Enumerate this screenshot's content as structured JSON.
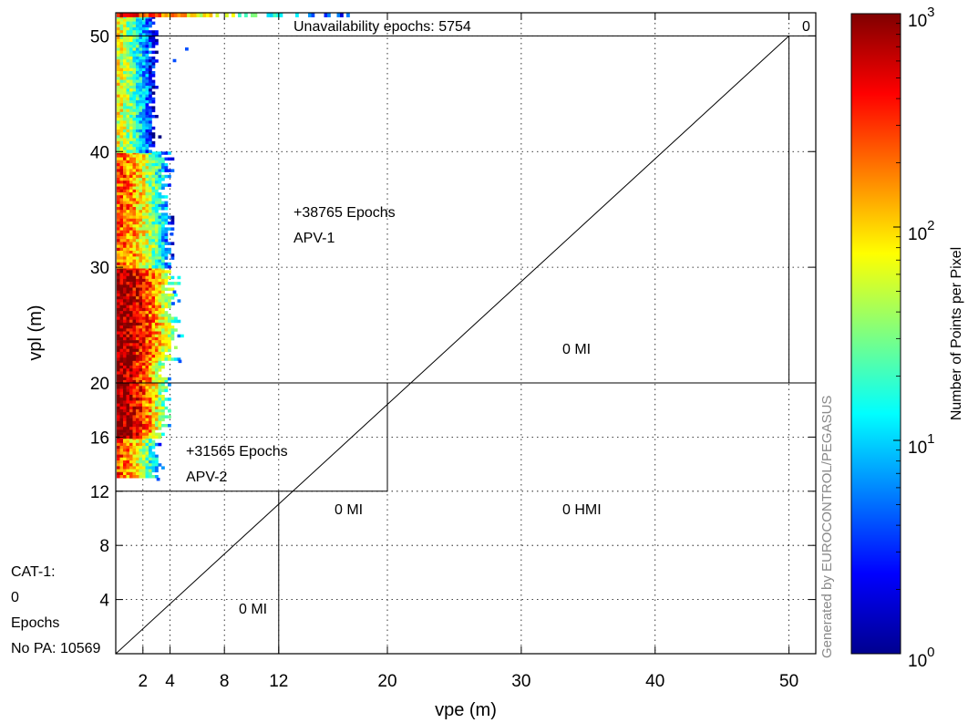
{
  "chart_data": {
    "type": "heatmap",
    "title": "",
    "xlabel": "vpe (m)",
    "ylabel": "vpl (m)",
    "xlim": [
      0,
      52
    ],
    "ylim": [
      0,
      52
    ],
    "scale": "piecewise-linear (compressed above 20 m)",
    "x_ticks": [
      "2",
      "4",
      "8",
      "12",
      "20",
      "30",
      "40",
      "50"
    ],
    "y_ticks": [
      "4",
      "8",
      "12",
      "16",
      "20",
      "30",
      "40",
      "50"
    ],
    "grid": true,
    "diagonal": "vpe = vpl",
    "regions": [
      {
        "name": "unavailability",
        "text": "Unavailability epochs: 5754"
      },
      {
        "name": "hmi-top-corner",
        "text": "0"
      },
      {
        "name": "apv1",
        "lines": [
          "+38765 Epochs",
          "APV-1"
        ]
      },
      {
        "name": "apv1-mi",
        "text": "0 MI"
      },
      {
        "name": "apv2",
        "lines": [
          "+31565 Epochs",
          "APV-2"
        ]
      },
      {
        "name": "apv2-mi",
        "text": "0 MI"
      },
      {
        "name": "hmi",
        "text": "0 HMI"
      },
      {
        "name": "cat1-mi",
        "text": "0 MI"
      },
      {
        "name": "cat1",
        "lines": [
          "CAT-1:",
          "0",
          "Epochs"
        ]
      },
      {
        "name": "no-pa",
        "text": "No PA: 10569"
      }
    ],
    "colorbar": {
      "label": "Number of Points per Pixel",
      "scale": "log",
      "range": [
        1,
        1000
      ],
      "ticks": [
        {
          "base": "10",
          "exp": "0"
        },
        {
          "base": "10",
          "exp": "1"
        },
        {
          "base": "10",
          "exp": "2"
        },
        {
          "base": "10",
          "exp": "3"
        }
      ]
    },
    "density": [
      {
        "vpl_min": 13,
        "vpl_max": 16,
        "vpe_max": 3.3,
        "level": "medium"
      },
      {
        "vpl_min": 16,
        "vpl_max": 22,
        "vpe_max": 3.8,
        "level": "high"
      },
      {
        "vpl_min": 22,
        "vpl_max": 30,
        "vpe_max": 4.5,
        "level": "high"
      },
      {
        "vpl_min": 30,
        "vpl_max": 40,
        "vpe_max": 4.0,
        "level": "medium"
      },
      {
        "vpl_min": 40,
        "vpl_max": 52,
        "vpe_max": 3.0,
        "level": "low"
      }
    ]
  },
  "watermark": "Generated by EUROCONTROL/PEGASUS"
}
